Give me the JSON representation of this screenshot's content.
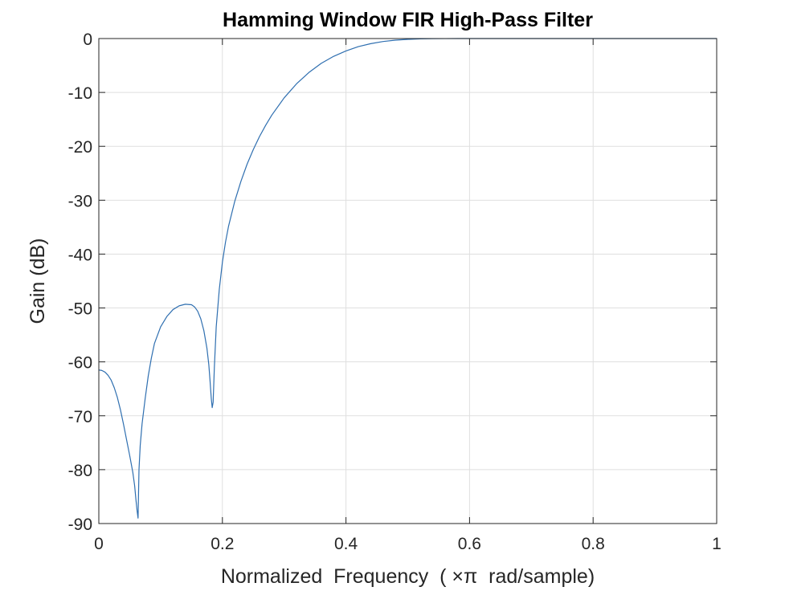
{
  "chart_data": {
    "type": "line",
    "title": "Hamming Window FIR High-Pass Filter",
    "xlabel": "Normalized  Frequency  ( ×π  rad/sample)",
    "ylabel": "Gain (dB)",
    "xlim": [
      0,
      1
    ],
    "ylim": [
      -90,
      0
    ],
    "xticks": [
      0,
      0.2,
      0.4,
      0.6,
      0.8,
      1
    ],
    "xtick_labels": [
      "0",
      "0.2",
      "0.4",
      "0.6",
      "0.8",
      "1"
    ],
    "yticks": [
      0,
      -10,
      -20,
      -30,
      -40,
      -50,
      -60,
      -70,
      -80,
      -90
    ],
    "ytick_labels": [
      "0",
      "-10",
      "-20",
      "-30",
      "-40",
      "-50",
      "-60",
      "-70",
      "-80",
      "-90"
    ],
    "grid": true,
    "box": true,
    "series": [
      {
        "color": "#2f6fb0",
        "x": [
          0,
          0.005,
          0.01,
          0.015,
          0.02,
          0.025,
          0.03,
          0.035,
          0.04,
          0.045,
          0.05,
          0.055,
          0.058,
          0.06,
          0.062,
          0.0635,
          0.065,
          0.067,
          0.07,
          0.075,
          0.08,
          0.085,
          0.09,
          0.1,
          0.11,
          0.12,
          0.13,
          0.14,
          0.15,
          0.155,
          0.16,
          0.165,
          0.17,
          0.175,
          0.178,
          0.18,
          0.182,
          0.1835,
          0.185,
          0.187,
          0.19,
          0.195,
          0.2,
          0.205,
          0.21,
          0.22,
          0.23,
          0.24,
          0.25,
          0.26,
          0.27,
          0.28,
          0.3,
          0.32,
          0.34,
          0.36,
          0.38,
          0.4,
          0.42,
          0.44,
          0.46,
          0.48,
          0.5,
          0.52,
          0.54,
          0.56,
          0.58,
          0.6,
          0.65,
          0.7,
          0.8,
          0.9,
          1.0
        ],
        "y": [
          -61.5,
          -61.6,
          -61.9,
          -62.5,
          -63.4,
          -64.8,
          -66.6,
          -68.9,
          -71.6,
          -74.5,
          -77.4,
          -80.5,
          -83.0,
          -85.5,
          -87.7,
          -89.0,
          -80.0,
          -75.5,
          -71.5,
          -66.8,
          -62.6,
          -59.3,
          -56.6,
          -53.5,
          -51.6,
          -50.3,
          -49.6,
          -49.3,
          -49.4,
          -49.8,
          -50.6,
          -52.0,
          -54.2,
          -57.5,
          -60.5,
          -63.5,
          -66.8,
          -68.5,
          -67.5,
          -61.0,
          -53.5,
          -46.5,
          -41.5,
          -37.8,
          -34.8,
          -30.2,
          -26.5,
          -23.3,
          -20.6,
          -18.2,
          -16.1,
          -14.2,
          -11.0,
          -8.4,
          -6.3,
          -4.6,
          -3.3,
          -2.3,
          -1.5,
          -0.95,
          -0.55,
          -0.3,
          -0.15,
          -0.06,
          -0.02,
          -0.01,
          0,
          0,
          0,
          0,
          0,
          0,
          0
        ]
      }
    ]
  }
}
